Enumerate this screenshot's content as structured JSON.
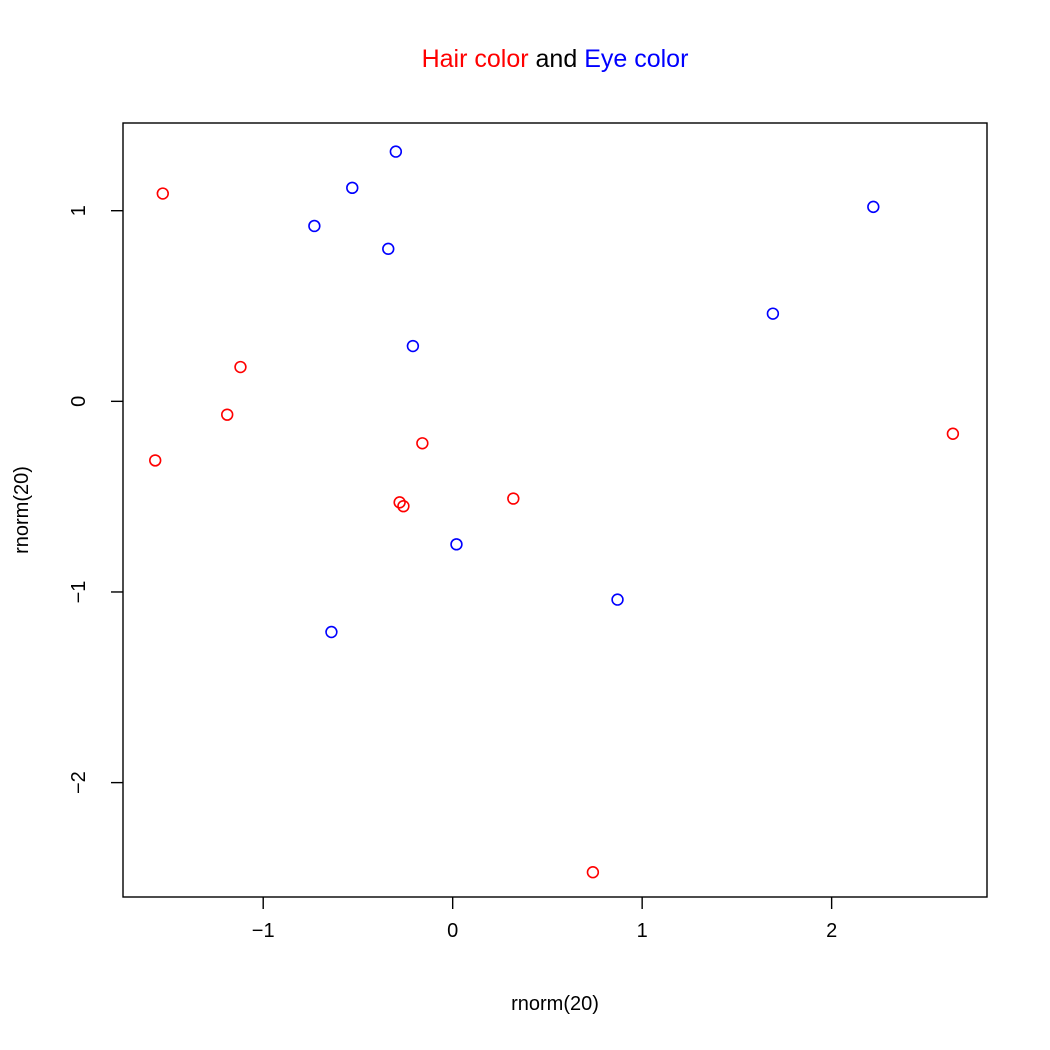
{
  "chart_data": {
    "type": "scatter",
    "title_parts": [
      {
        "text": "Hair color",
        "color": "#ff0000"
      },
      {
        "text": " and ",
        "color": "#000000"
      },
      {
        "text": "Eye color",
        "color": "#0000ff"
      }
    ],
    "xlabel": "rnorm(20)",
    "ylabel": "rnorm(20)",
    "xlim": [
      -1.74,
      2.82
    ],
    "ylim": [
      -2.6,
      1.46
    ],
    "x_ticks": [
      -1,
      0,
      1,
      2
    ],
    "x_tick_labels": [
      "−1",
      "0",
      "1",
      "2"
    ],
    "y_ticks": [
      -2,
      -1,
      0,
      1
    ],
    "y_tick_labels": [
      "−2",
      "−1",
      "0",
      "1"
    ],
    "grid": false,
    "series": [
      {
        "color": "#ff0000",
        "points": [
          {
            "x": -1.53,
            "y": 1.09
          },
          {
            "x": -1.12,
            "y": 0.18
          },
          {
            "x": -1.19,
            "y": -0.07
          },
          {
            "x": -1.57,
            "y": -0.31
          },
          {
            "x": -0.16,
            "y": -0.22
          },
          {
            "x": -0.28,
            "y": -0.53
          },
          {
            "x": -0.26,
            "y": -0.55
          },
          {
            "x": 0.32,
            "y": -0.51
          },
          {
            "x": 0.74,
            "y": -2.47
          },
          {
            "x": 2.64,
            "y": -0.17
          }
        ]
      },
      {
        "color": "#0000ff",
        "points": [
          {
            "x": -0.3,
            "y": 1.31
          },
          {
            "x": -0.53,
            "y": 1.12
          },
          {
            "x": -0.73,
            "y": 0.92
          },
          {
            "x": -0.34,
            "y": 0.8
          },
          {
            "x": -0.21,
            "y": 0.29
          },
          {
            "x": 0.02,
            "y": -0.75
          },
          {
            "x": -0.64,
            "y": -1.21
          },
          {
            "x": 0.87,
            "y": -1.04
          },
          {
            "x": 1.69,
            "y": 0.46
          },
          {
            "x": 2.22,
            "y": 1.02
          }
        ]
      }
    ]
  }
}
